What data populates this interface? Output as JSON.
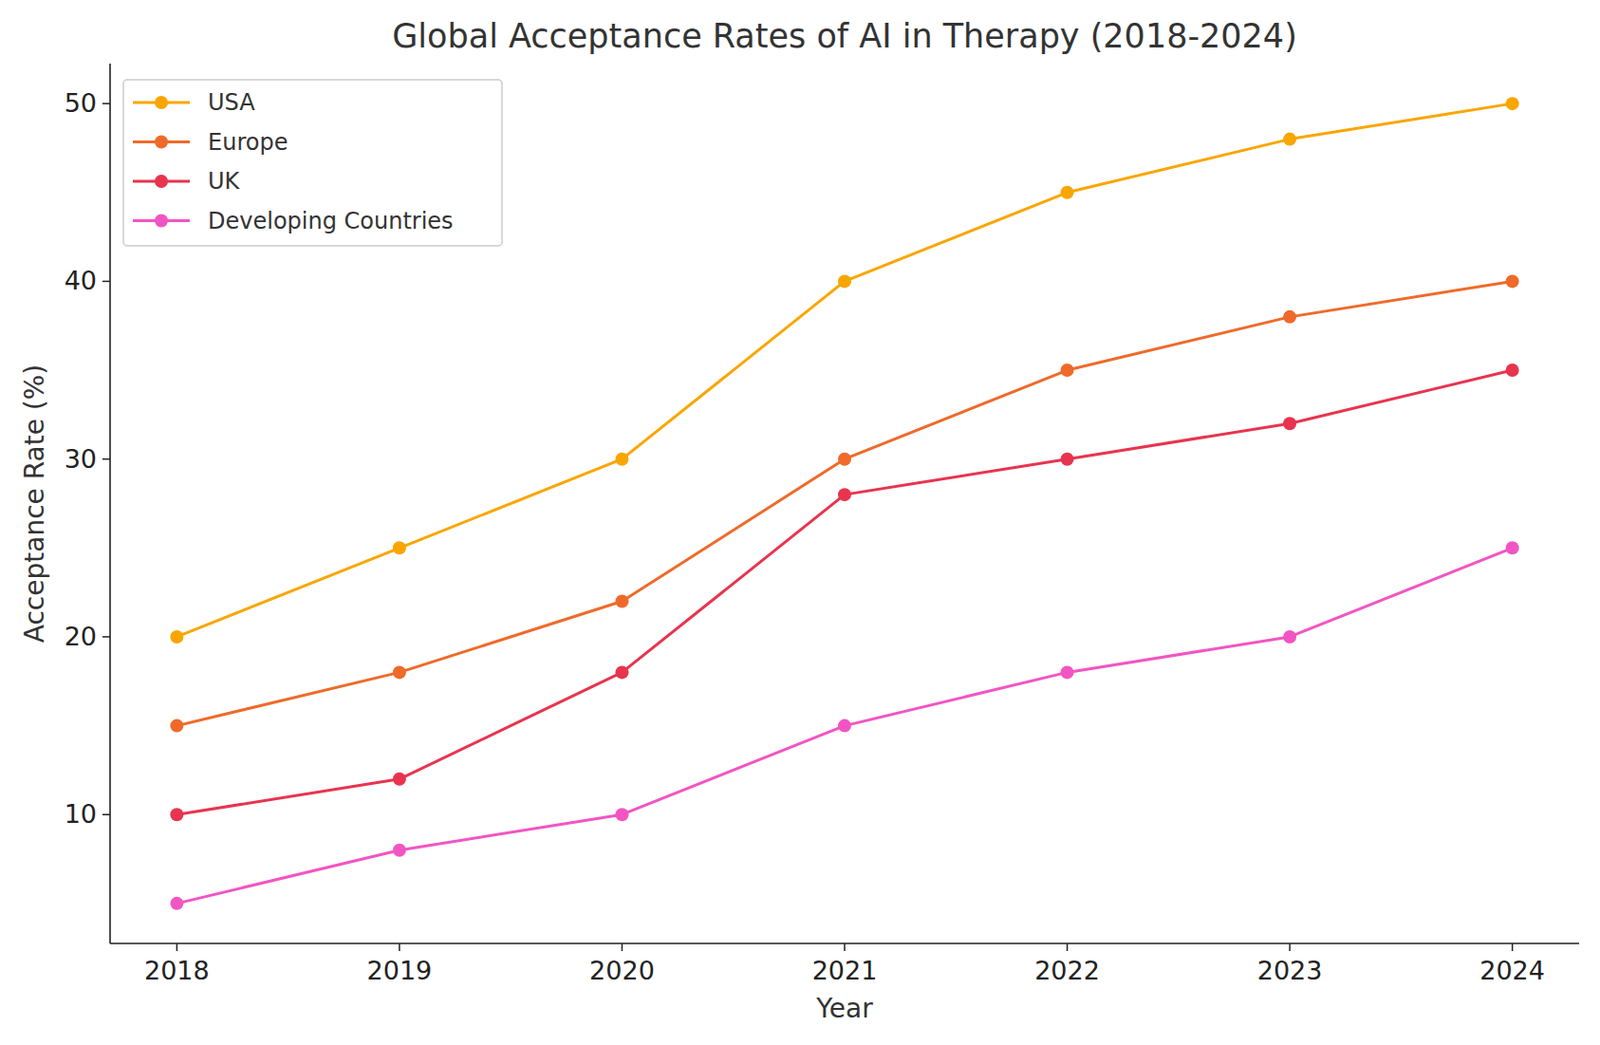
{
  "chart_data": {
    "type": "line",
    "title": "Global Acceptance Rates of AI in Therapy (2018-2024)",
    "x_label": "Year",
    "y_label": "Acceptance Rate (%)",
    "x": [
      2018,
      2019,
      2020,
      2021,
      2022,
      2023,
      2024
    ],
    "series": [
      {
        "name": "USA",
        "color": "#f9a602",
        "values": [
          20,
          25,
          30,
          40,
          45,
          48,
          50
        ]
      },
      {
        "name": "Europe",
        "color": "#ef6a2a",
        "values": [
          15,
          18,
          22,
          30,
          35,
          38,
          40
        ]
      },
      {
        "name": "UK",
        "color": "#e8344e",
        "values": [
          10,
          12,
          18,
          28,
          30,
          32,
          35
        ]
      },
      {
        "name": "Developing Countries",
        "color": "#f255c3",
        "values": [
          5,
          8,
          10,
          15,
          18,
          20,
          25
        ]
      }
    ],
    "xlim": [
      2017.7,
      2024.3
    ],
    "xticks": [
      2018,
      2019,
      2020,
      2021,
      2022,
      2023,
      2024
    ],
    "ylim": [
      2.75,
      52.25
    ],
    "yticks": [
      10,
      20,
      30,
      40,
      50
    ],
    "grid": false,
    "legend": "upper left",
    "marker": "circle",
    "line_style": "solid"
  }
}
